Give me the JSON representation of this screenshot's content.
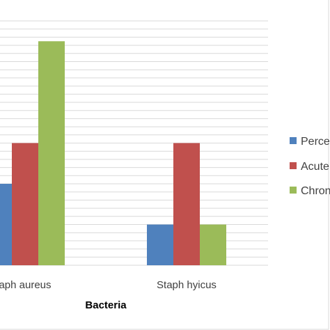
{
  "chart_data": {
    "type": "bar",
    "categories": [
      "aph aureus",
      "Staph hyicus"
    ],
    "series": [
      {
        "name": "Perce",
        "color": "#4f81bd",
        "values": [
          2,
          1
        ]
      },
      {
        "name": "Acute",
        "color": "#c0504d",
        "values": [
          3,
          3
        ]
      },
      {
        "name": "Chron",
        "color": "#9bbb59",
        "values": [
          5.5,
          1
        ]
      }
    ],
    "xlabel": "Bacteria",
    "ylim": [
      0,
      6
    ],
    "grid": true,
    "legend_position": "right"
  }
}
